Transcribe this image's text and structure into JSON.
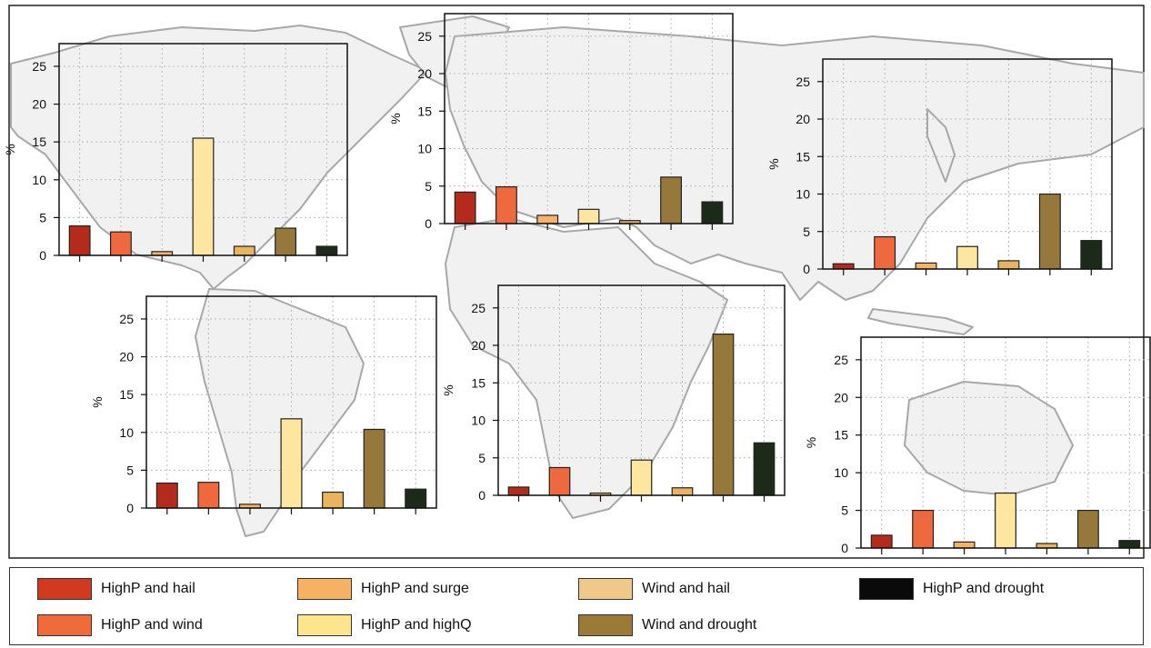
{
  "categories": [
    "HighP and hail",
    "HighP and wind",
    "HighP and surge",
    "HighP and highQ",
    "Wind and hail",
    "Wind and drought",
    "HighP and drought"
  ],
  "colors": {
    "HighP and hail": "#d13a1e",
    "HighP and wind": "#ef6b3c",
    "HighP and surge": "#f7b165",
    "HighP and highQ": "#fde58c",
    "Wind and hail": "#f0c98a",
    "Wind and drought": "#9a7a35",
    "HighP and drought": "#0a0a0a"
  },
  "chart_data": [
    {
      "type": "bar",
      "region": "north-america",
      "ylabel": "%",
      "ylim": [
        0,
        28
      ],
      "yticks": [
        0,
        5,
        10,
        15,
        20,
        25
      ],
      "series": [
        {
          "values": [
            3.9,
            3.1,
            0.5,
            15.5,
            1.2,
            3.6,
            1.2
          ]
        }
      ]
    },
    {
      "type": "bar",
      "region": "europe",
      "ylabel": "%",
      "ylim": [
        0,
        28
      ],
      "yticks": [
        0,
        5,
        10,
        15,
        20,
        25
      ],
      "series": [
        {
          "values": [
            4.2,
            4.9,
            1.1,
            1.9,
            0.4,
            6.2,
            2.9
          ]
        }
      ]
    },
    {
      "type": "bar",
      "region": "east-asia",
      "ylabel": "%",
      "ylim": [
        0,
        28
      ],
      "yticks": [
        0,
        5,
        10,
        15,
        20,
        25
      ],
      "series": [
        {
          "values": [
            0.7,
            4.3,
            0.8,
            3.0,
            1.1,
            10.0,
            3.8
          ]
        }
      ]
    },
    {
      "type": "bar",
      "region": "south-america",
      "ylabel": "%",
      "ylim": [
        0,
        28
      ],
      "yticks": [
        0,
        5,
        10,
        15,
        20,
        25
      ],
      "series": [
        {
          "values": [
            3.3,
            3.4,
            0.5,
            11.8,
            2.1,
            10.4,
            2.5
          ]
        }
      ]
    },
    {
      "type": "bar",
      "region": "africa",
      "ylabel": "%",
      "ylim": [
        0,
        28
      ],
      "yticks": [
        0,
        5,
        10,
        15,
        20,
        25
      ],
      "series": [
        {
          "values": [
            1.1,
            3.7,
            0.3,
            4.7,
            1.0,
            21.5,
            7.0
          ]
        }
      ]
    },
    {
      "type": "bar",
      "region": "australia",
      "ylabel": "%",
      "ylim": [
        0,
        28
      ],
      "yticks": [
        0,
        5,
        10,
        15,
        20,
        25
      ],
      "series": [
        {
          "values": [
            1.7,
            5.0,
            0.8,
            7.3,
            0.6,
            5.0,
            1.0
          ]
        }
      ]
    }
  ],
  "legend": {
    "items": [
      {
        "label": "HighP and hail",
        "color": "#d13a1e"
      },
      {
        "label": "HighP and surge",
        "color": "#f7b165"
      },
      {
        "label": "Wind and hail",
        "color": "#f0c98a"
      },
      {
        "label": "HighP and drought",
        "color": "#0a0a0a"
      },
      {
        "label": "HighP and wind",
        "color": "#ef6b3c"
      },
      {
        "label": "HighP and highQ",
        "color": "#fde58c"
      },
      {
        "label": "Wind and drought",
        "color": "#9a7a35"
      }
    ]
  }
}
